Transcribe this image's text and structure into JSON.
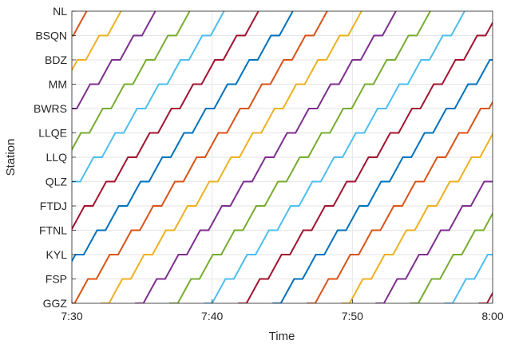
{
  "chart_data": {
    "type": "line",
    "title": "",
    "xlabel": "Time",
    "ylabel": "Station",
    "x_ticks": [
      "7:30",
      "7:40",
      "7:50",
      "8:00"
    ],
    "x_tick_minutes": [
      0,
      10,
      20,
      30
    ],
    "xlim_minutes_after_7_30": [
      0,
      30
    ],
    "stations": [
      "GGZ",
      "FSP",
      "KYL",
      "FTNL",
      "FTDJ",
      "QLZ",
      "LLQ",
      "LLQE",
      "BWRS",
      "MM",
      "BDZ",
      "BSQN",
      "NL"
    ],
    "grid": true,
    "legend": "none",
    "color_cycle": [
      "#0072BD",
      "#D95319",
      "#EDB120",
      "#7E2F8E",
      "#77AC30",
      "#4DBEEE",
      "#A2142F"
    ],
    "pattern": {
      "dwell_minutes": 0.6,
      "run_minutes_per_segment": 0.95,
      "first_departure_minutes": -20.0,
      "headway_minutes": 2.45,
      "train_count": 22,
      "start_station": "GGZ",
      "end_station": "NL"
    }
  }
}
